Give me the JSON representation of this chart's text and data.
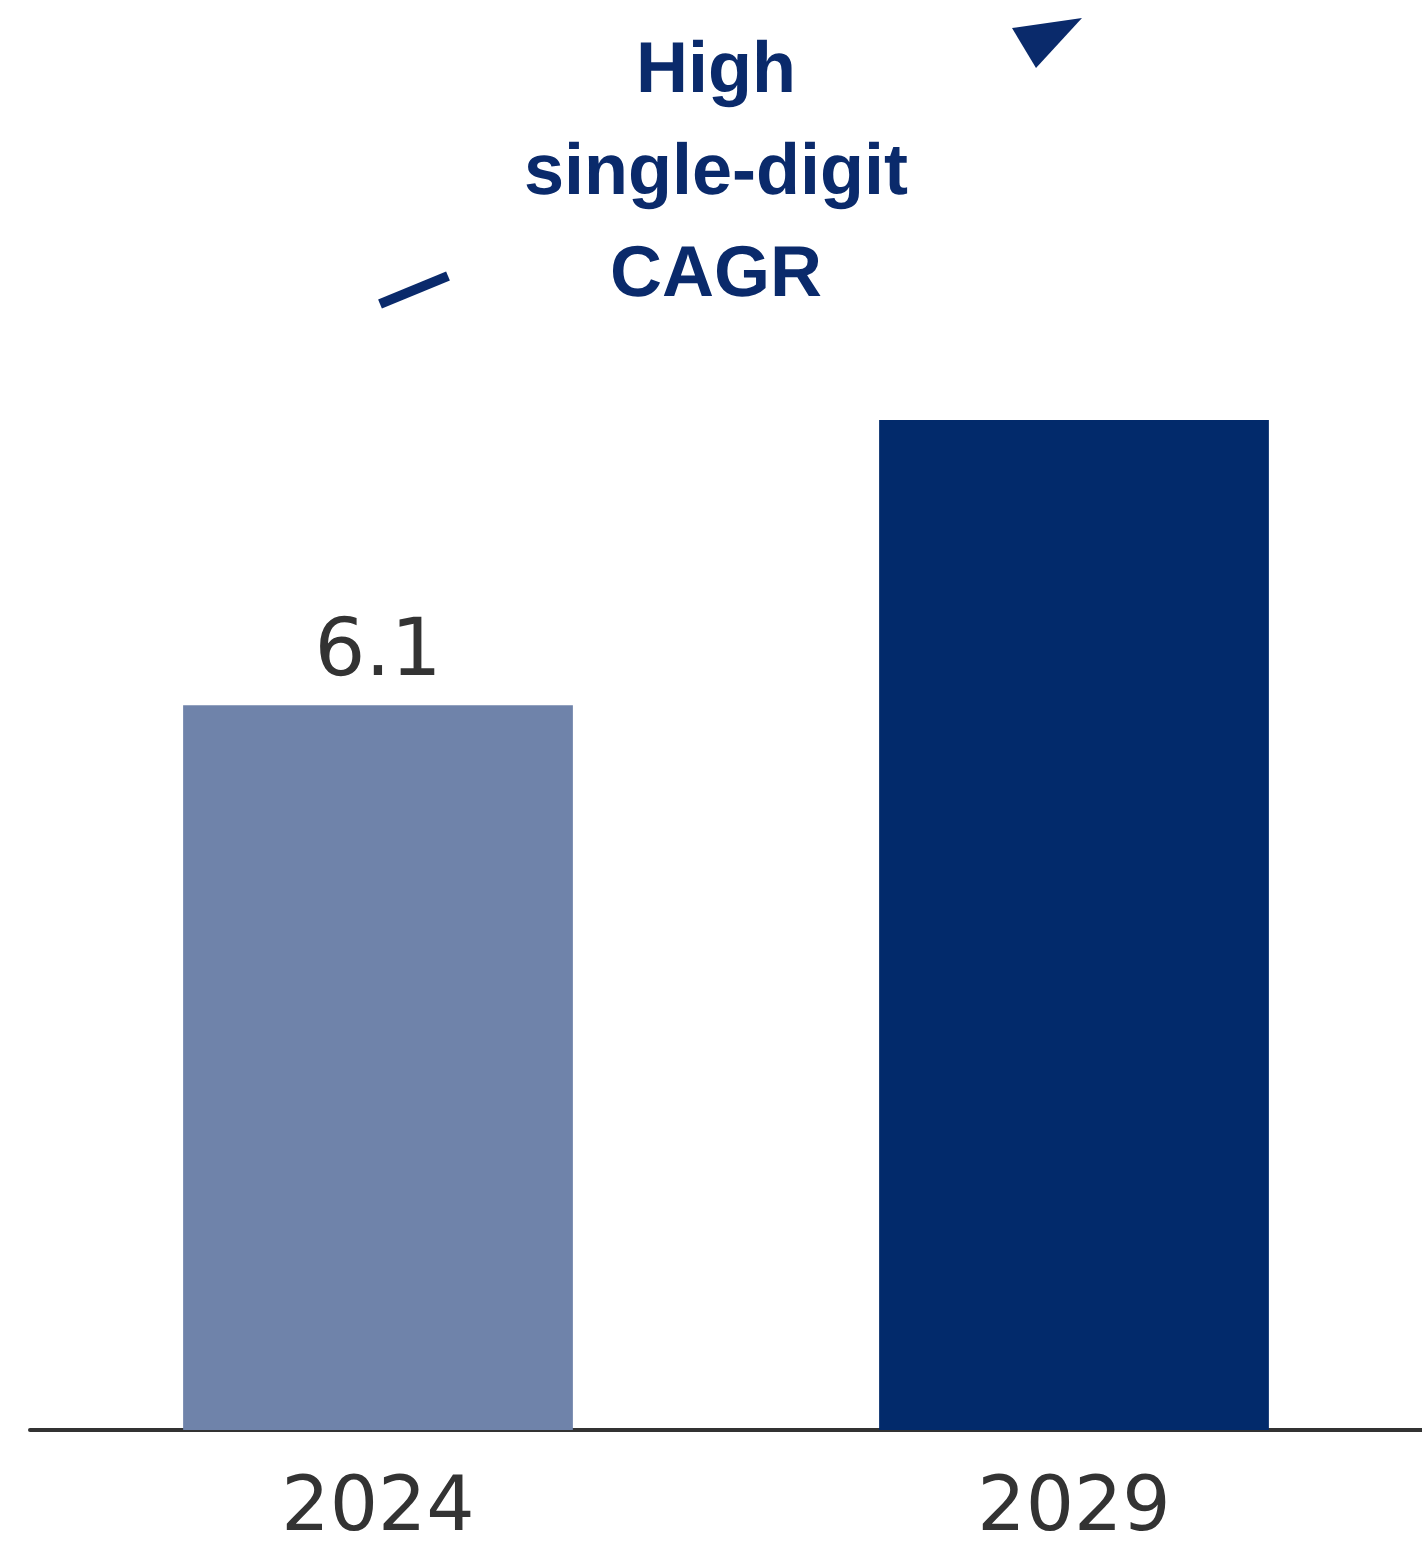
{
  "chart_data": {
    "type": "bar",
    "categories": [
      "2024",
      "2029"
    ],
    "values": [
      6.1,
      8.5
    ],
    "colors": [
      "#6f83aa",
      "#022a6b"
    ],
    "value_labels": [
      "6.1",
      null
    ],
    "annotations": [
      "High\nsingle-digit\nCAGR"
    ]
  }
}
